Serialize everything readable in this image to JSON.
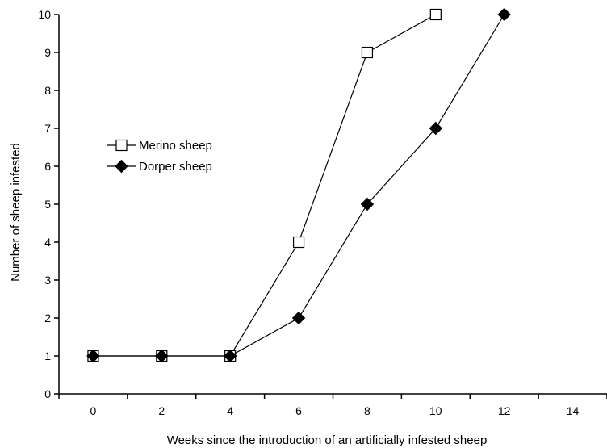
{
  "chart_data": {
    "type": "line",
    "title": "",
    "xlabel": "Weeks since the introduction of an artificially infested sheep",
    "ylabel": "Number of sheep infested",
    "xlim": [
      -1,
      15
    ],
    "ylim": [
      0,
      10
    ],
    "x_ticks": [
      0,
      2,
      4,
      6,
      8,
      10,
      12,
      14
    ],
    "y_ticks": [
      0,
      1,
      2,
      3,
      4,
      5,
      6,
      7,
      8,
      9,
      10
    ],
    "grid": false,
    "legend_position": "left-middle",
    "series": [
      {
        "name": "Merino sheep",
        "marker": "open-square",
        "color": "#000000",
        "x": [
          0,
          2,
          4,
          6,
          8,
          10
        ],
        "y": [
          1,
          1,
          1,
          4,
          9,
          10
        ]
      },
      {
        "name": "Dorper sheep",
        "marker": "filled-diamond",
        "color": "#000000",
        "x": [
          0,
          2,
          4,
          6,
          8,
          10,
          12
        ],
        "y": [
          1,
          1,
          1,
          2,
          5,
          7,
          10
        ]
      }
    ]
  }
}
